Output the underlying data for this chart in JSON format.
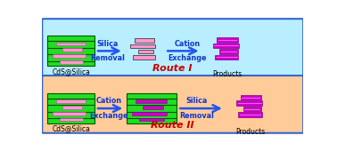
{
  "route1_bg": "#b8eeff",
  "route2_bg": "#ffcc99",
  "green_color": "#22dd22",
  "dark_green": "#005500",
  "green_stripe": "#009900",
  "pink_color": "#ff99cc",
  "dark_pink": "#bb44aa",
  "magenta_color": "#cc00cc",
  "dark_magenta": "#880088",
  "magenta_light": "#ff55ff",
  "arrow_color": "#2255ee",
  "route_label_color": "#cc0000",
  "text_color": "#000000",
  "blue_text": "#1133cc",
  "border_color": "#3366cc",
  "route1_label": "Route I",
  "route2_label": "Route II",
  "label1a": "Silica",
  "label1b": "Removal",
  "label2a": "Cation",
  "label2b": "Exchange",
  "label3a": "Cation",
  "label3b": "Exchange",
  "label4a": "Silica",
  "label4b": "Removal",
  "cds_label": "CdS@Silica",
  "products_label": "Products"
}
